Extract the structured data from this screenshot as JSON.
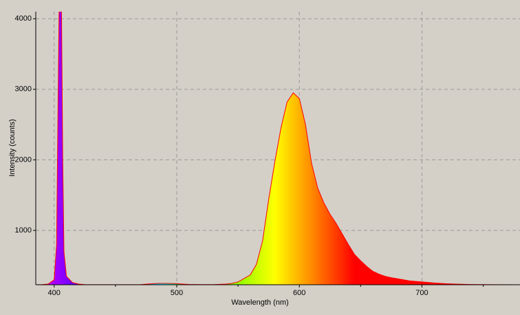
{
  "chart_data": {
    "type": "area",
    "x_label": "Wavelength (nm)",
    "y_label": "Intensity (counts)",
    "xlim": [
      385,
      780
    ],
    "ylim": [
      230,
      4100
    ],
    "xticks": [
      400,
      500,
      600,
      700
    ],
    "x_minor_ticks": [
      450,
      550,
      650,
      750
    ],
    "yticks": [
      1000,
      2000,
      3000,
      4000
    ],
    "grid": true,
    "fill": "spectrum",
    "series": [
      {
        "name": "Intensity",
        "color": "#ff0000",
        "x": [
          385,
          390,
          395,
          400,
          402,
          403,
          404,
          405,
          406,
          407,
          408,
          410,
          415,
          420,
          425,
          430,
          440,
          450,
          460,
          470,
          475,
          480,
          485,
          490,
          495,
          500,
          505,
          510,
          520,
          530,
          540,
          545,
          550,
          555,
          560,
          565,
          570,
          575,
          580,
          585,
          590,
          595,
          600,
          605,
          610,
          615,
          620,
          625,
          630,
          635,
          640,
          645,
          650,
          655,
          660,
          665,
          670,
          675,
          680,
          690,
          700,
          710,
          720,
          730,
          740,
          760,
          780
        ],
        "values": [
          230,
          232,
          240,
          300,
          800,
          2500,
          4100,
          4100,
          4100,
          2000,
          700,
          350,
          260,
          240,
          232,
          231,
          231,
          231,
          231,
          231,
          238,
          245,
          250,
          250,
          248,
          246,
          240,
          235,
          232,
          233,
          240,
          250,
          270,
          320,
          370,
          520,
          850,
          1440,
          1970,
          2450,
          2820,
          2950,
          2870,
          2500,
          1950,
          1600,
          1390,
          1230,
          1100,
          950,
          800,
          660,
          570,
          490,
          420,
          380,
          350,
          330,
          315,
          285,
          270,
          255,
          245,
          238,
          234,
          231,
          230
        ]
      }
    ]
  }
}
